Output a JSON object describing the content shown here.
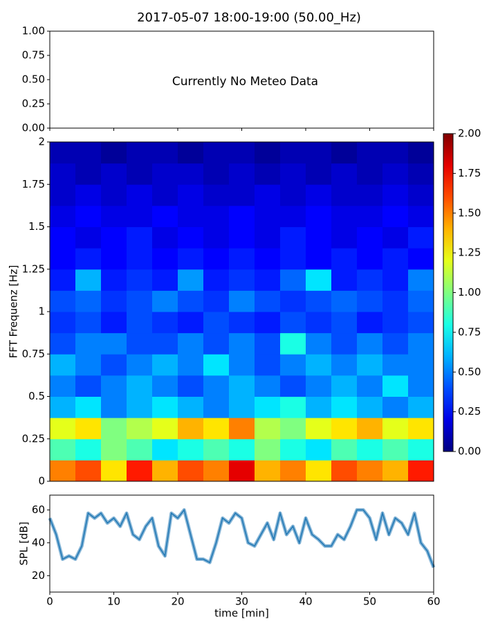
{
  "title": "2017-05-07 18:00-19:00 (50.00_Hz)",
  "chart_data": [
    {
      "type": "empty",
      "annotation": "Currently No Meteo Data",
      "ylim": [
        0,
        1
      ],
      "yticks": [
        {
          "value": 0,
          "label": "0.00"
        },
        {
          "value": 0.25,
          "label": "0.25"
        },
        {
          "value": 0.5,
          "label": "0.50"
        },
        {
          "value": 0.75,
          "label": "0.75"
        },
        {
          "value": 1,
          "label": "1.00"
        }
      ]
    },
    {
      "type": "heatmap",
      "ylabel": "FFT Frequenz [Hz]",
      "colormap": "jet",
      "xlim": [
        0,
        60
      ],
      "ylim": [
        0,
        2
      ],
      "yticks": [
        0,
        0.25,
        0.5,
        0.75,
        1,
        1.25,
        1.5,
        1.75,
        2
      ],
      "zlim": [
        0,
        2
      ],
      "zticks": [
        {
          "value": 0,
          "label": "0.00"
        },
        {
          "value": 0.25,
          "label": "0.25"
        },
        {
          "value": 0.5,
          "label": "0.50"
        },
        {
          "value": 0.75,
          "label": "0.75"
        },
        {
          "value": 1,
          "label": "1.00"
        },
        {
          "value": 1.25,
          "label": "1.25"
        },
        {
          "value": 1.5,
          "label": "1.50"
        },
        {
          "value": 1.75,
          "label": "1.75"
        },
        {
          "value": 2,
          "label": "2.00"
        }
      ],
      "z": [
        [
          1.5,
          1.6,
          1.3,
          1.7,
          1.4,
          1.6,
          1.5,
          1.8,
          1.4,
          1.5,
          1.3,
          1.6,
          1.5,
          1.4,
          1.7
        ],
        [
          0.9,
          0.8,
          1.0,
          0.9,
          0.7,
          0.8,
          0.9,
          0.8,
          1.0,
          0.8,
          0.7,
          0.9,
          0.8,
          0.9,
          0.8
        ],
        [
          1.2,
          1.3,
          1.0,
          1.1,
          1.2,
          1.4,
          1.3,
          1.5,
          1.1,
          1.0,
          1.2,
          1.3,
          1.4,
          1.2,
          1.3
        ],
        [
          0.6,
          0.7,
          0.5,
          0.6,
          0.7,
          0.6,
          0.5,
          0.6,
          0.7,
          0.8,
          0.6,
          0.7,
          0.6,
          0.5,
          0.6
        ],
        [
          0.5,
          0.4,
          0.5,
          0.6,
          0.5,
          0.4,
          0.5,
          0.6,
          0.5,
          0.4,
          0.5,
          0.6,
          0.5,
          0.7,
          0.5
        ],
        [
          0.6,
          0.5,
          0.4,
          0.5,
          0.6,
          0.5,
          0.7,
          0.5,
          0.4,
          0.5,
          0.6,
          0.5,
          0.6,
          0.5,
          0.5
        ],
        [
          0.4,
          0.5,
          0.5,
          0.4,
          0.4,
          0.5,
          0.4,
          0.5,
          0.4,
          0.8,
          0.5,
          0.4,
          0.5,
          0.4,
          0.5
        ],
        [
          0.35,
          0.4,
          0.3,
          0.4,
          0.35,
          0.3,
          0.4,
          0.35,
          0.3,
          0.4,
          0.35,
          0.4,
          0.3,
          0.35,
          0.4
        ],
        [
          0.4,
          0.45,
          0.35,
          0.4,
          0.5,
          0.4,
          0.35,
          0.5,
          0.4,
          0.35,
          0.4,
          0.45,
          0.4,
          0.35,
          0.45
        ],
        [
          0.3,
          0.6,
          0.3,
          0.35,
          0.3,
          0.55,
          0.3,
          0.35,
          0.3,
          0.45,
          0.7,
          0.3,
          0.35,
          0.3,
          0.5
        ],
        [
          0.25,
          0.3,
          0.25,
          0.3,
          0.25,
          0.3,
          0.25,
          0.3,
          0.25,
          0.3,
          0.25,
          0.3,
          0.25,
          0.3,
          0.25
        ],
        [
          0.25,
          0.2,
          0.25,
          0.3,
          0.2,
          0.25,
          0.2,
          0.25,
          0.2,
          0.3,
          0.25,
          0.2,
          0.25,
          0.2,
          0.3
        ],
        [
          0.2,
          0.25,
          0.2,
          0.2,
          0.25,
          0.2,
          0.2,
          0.25,
          0.2,
          0.2,
          0.25,
          0.2,
          0.2,
          0.25,
          0.2
        ],
        [
          0.15,
          0.2,
          0.15,
          0.2,
          0.15,
          0.2,
          0.15,
          0.15,
          0.2,
          0.15,
          0.2,
          0.15,
          0.15,
          0.2,
          0.15
        ],
        [
          0.15,
          0.1,
          0.15,
          0.1,
          0.15,
          0.15,
          0.1,
          0.15,
          0.1,
          0.15,
          0.1,
          0.15,
          0.1,
          0.15,
          0.1
        ],
        [
          0.1,
          0.1,
          0.05,
          0.1,
          0.1,
          0.05,
          0.1,
          0.1,
          0.05,
          0.1,
          0.1,
          0.05,
          0.1,
          0.1,
          0.05
        ]
      ]
    },
    {
      "type": "line",
      "xlabel": "time [min]",
      "ylabel": "SPL [dB]",
      "color": "#1f77b4",
      "xlim": [
        0,
        60
      ],
      "xticks": [
        0,
        10,
        20,
        30,
        40,
        50,
        60
      ],
      "ylim": [
        10,
        69
      ],
      "yticks": [
        20,
        40,
        60
      ],
      "x": [
        0,
        1,
        2,
        3,
        4,
        5,
        6,
        7,
        8,
        9,
        10,
        11,
        12,
        13,
        14,
        15,
        16,
        17,
        18,
        19,
        20,
        21,
        22,
        23,
        24,
        25,
        26,
        27,
        28,
        29,
        30,
        31,
        32,
        33,
        34,
        35,
        36,
        37,
        38,
        39,
        40,
        41,
        42,
        43,
        44,
        45,
        46,
        47,
        48,
        49,
        50,
        51,
        52,
        53,
        54,
        55,
        56,
        57,
        58,
        59,
        60
      ],
      "values": [
        55,
        45,
        30,
        32,
        30,
        38,
        58,
        55,
        58,
        52,
        55,
        50,
        58,
        45,
        42,
        50,
        55,
        38,
        32,
        58,
        55,
        60,
        45,
        30,
        30,
        28,
        40,
        55,
        52,
        58,
        55,
        40,
        38,
        45,
        52,
        42,
        58,
        45,
        50,
        40,
        55,
        45,
        42,
        38,
        38,
        45,
        42,
        50,
        60,
        60,
        55,
        42,
        58,
        45,
        55,
        52,
        45,
        58,
        40,
        35,
        25
      ]
    }
  ]
}
